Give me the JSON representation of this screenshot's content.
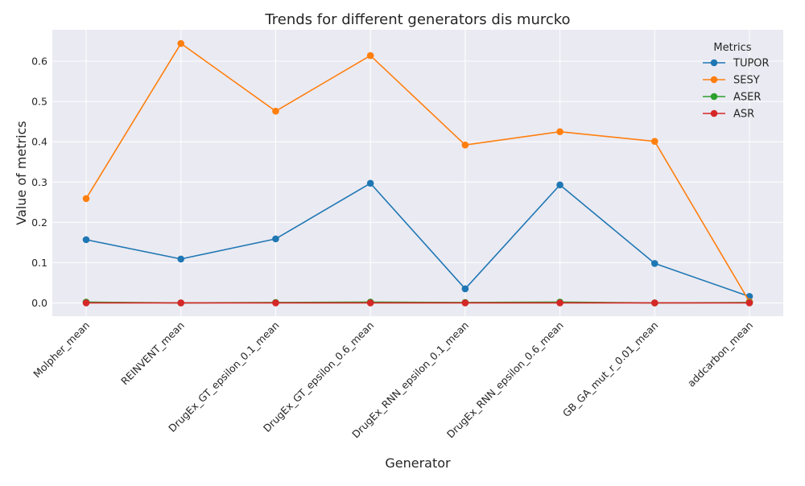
{
  "chart_data": {
    "type": "line",
    "title": "Trends for different generators dis murcko",
    "xlabel": "Generator",
    "ylabel": "Value of metrics",
    "categories": [
      "Molpher_mean",
      "REINVENT_mean",
      "DrugEx_GT_epsilon_0.1_mean",
      "DrugEx_GT_epsilon_0.6_mean",
      "DrugEx_RNN_epsilon_0.1_mean",
      "DrugEx_RNN_epsilon_0.6_mean",
      "GB_GA_mut_r_0.01_mean",
      "addcarbon_mean"
    ],
    "ylim": [
      -0.033,
      0.678
    ],
    "yticks": [
      "0.0",
      "0.1",
      "0.2",
      "0.3",
      "0.4",
      "0.5",
      "0.6"
    ],
    "grid": true,
    "legend": {
      "title": "Metrics",
      "placement": "top-right"
    },
    "series": [
      {
        "name": "TUPOR",
        "color": "#1f77b4",
        "values": [
          0.157,
          0.109,
          0.159,
          0.297,
          0.035,
          0.293,
          0.098,
          0.016
        ]
      },
      {
        "name": "SESY",
        "color": "#ff7f0e",
        "values": [
          0.259,
          0.644,
          0.476,
          0.614,
          0.392,
          0.425,
          0.401,
          0.003
        ]
      },
      {
        "name": "ASER",
        "color": "#2ca02c",
        "values": [
          0.002,
          0.0,
          0.001,
          0.002,
          0.001,
          0.002,
          0.0,
          0.001
        ]
      },
      {
        "name": "ASR",
        "color": "#d62728",
        "values": [
          0.0,
          0.0,
          0.0,
          0.0,
          0.0,
          0.0,
          0.0,
          0.0
        ]
      }
    ]
  }
}
